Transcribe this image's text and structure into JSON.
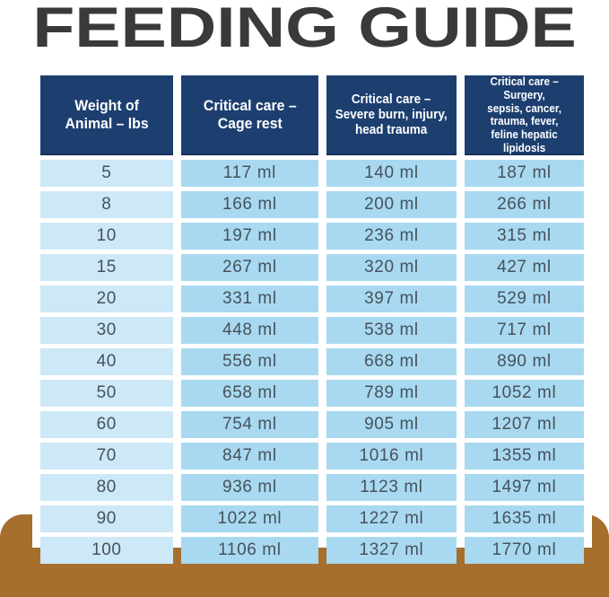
{
  "title": "FEEDING GUIDE",
  "colors": {
    "title_text": "#3a3a3c",
    "header_navy": "#1c3f70",
    "header_text": "#ffffff",
    "weight_column_blue": "#cde8f7",
    "value_cell_blue": "#a8d9f1",
    "cell_text": "#46525b",
    "packaging_brown": "#a76f2e",
    "background": "#ffffff"
  },
  "table": {
    "headers": [
      "Weight of\nAnimal – lbs",
      "Critical care –\nCage rest",
      "Critical care –\nSevere burn, injury,\nhead trauma",
      "Critical care – Surgery,\nsepsis, cancer, trauma, fever,\nfeline hepatic lipidosis"
    ],
    "rows": [
      [
        "5",
        "117 ml",
        "140 ml",
        "187 ml"
      ],
      [
        "8",
        "166 ml",
        "200 ml",
        "266 ml"
      ],
      [
        "10",
        "197 ml",
        "236 ml",
        "315 ml"
      ],
      [
        "15",
        "267 ml",
        "320 ml",
        "427 ml"
      ],
      [
        "20",
        "331 ml",
        "397 ml",
        "529 ml"
      ],
      [
        "30",
        "448 ml",
        "538 ml",
        "717 ml"
      ],
      [
        "40",
        "556 ml",
        "668 ml",
        "890 ml"
      ],
      [
        "50",
        "658 ml",
        "789 ml",
        "1052 ml"
      ],
      [
        "60",
        "754 ml",
        "905 ml",
        "1207 ml"
      ],
      [
        "70",
        "847 ml",
        "1016 ml",
        "1355 ml"
      ],
      [
        "80",
        "936 ml",
        "1123 ml",
        "1497 ml"
      ],
      [
        "90",
        "1022 ml",
        "1227 ml",
        "1635 ml"
      ],
      [
        "100",
        "1106 ml",
        "1327 ml",
        "1770 ml"
      ]
    ]
  },
  "chart_data": {
    "type": "table",
    "title": "FEEDING GUIDE",
    "columns": [
      "Weight of Animal – lbs",
      "Critical care – Cage rest",
      "Critical care – Severe burn, injury, head trauma",
      "Critical care – Surgery, sepsis, cancer, trauma, fever, feline hepatic lipidosis"
    ],
    "weights_lbs": [
      5,
      8,
      10,
      15,
      20,
      30,
      40,
      50,
      60,
      70,
      80,
      90,
      100
    ],
    "unit": "ml",
    "series": [
      {
        "name": "Critical care – Cage rest",
        "values": [
          117,
          166,
          197,
          267,
          331,
          448,
          556,
          658,
          754,
          847,
          936,
          1022,
          1106
        ]
      },
      {
        "name": "Critical care – Severe burn, injury, head trauma",
        "values": [
          140,
          200,
          236,
          320,
          397,
          538,
          668,
          789,
          905,
          1016,
          1123,
          1227,
          1327
        ]
      },
      {
        "name": "Critical care – Surgery, sepsis, cancer, trauma, fever, feline hepatic lipidosis",
        "values": [
          187,
          266,
          315,
          427,
          529,
          717,
          890,
          1052,
          1207,
          1355,
          1497,
          1635,
          1770
        ]
      }
    ]
  }
}
